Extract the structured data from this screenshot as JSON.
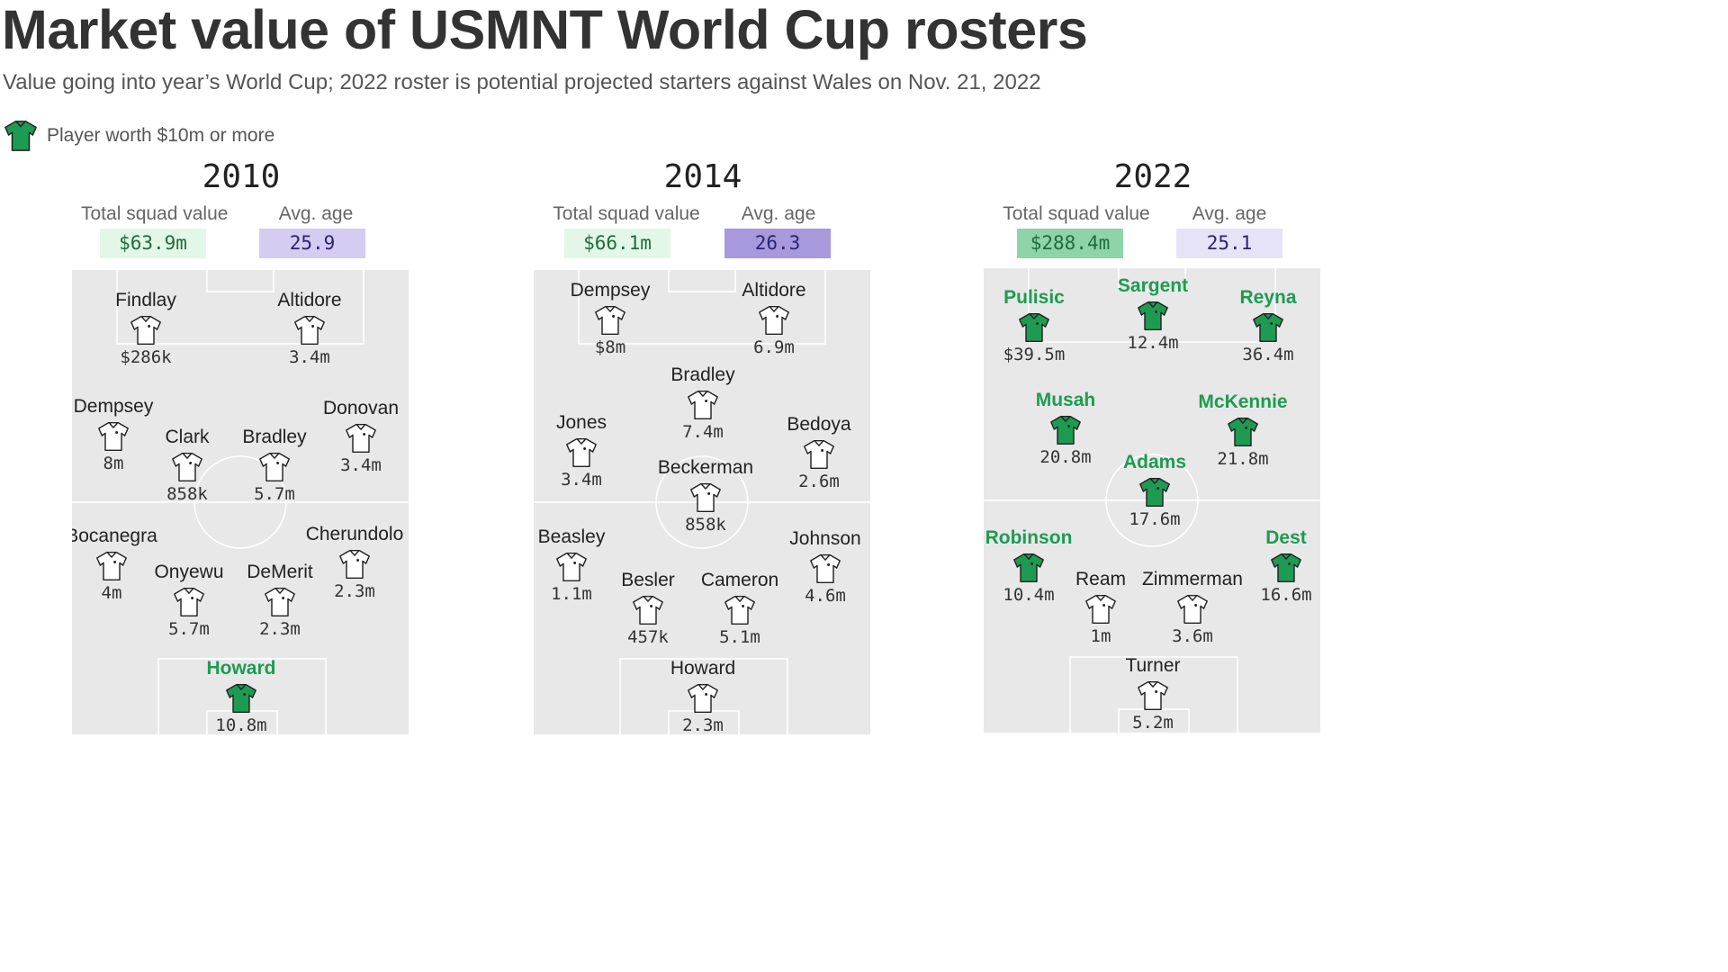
{
  "header": {
    "title": "Market value of USMNT World Cup rosters",
    "subtitle": "Value going into year’s World Cup; 2022 roster is potential projected starters against Wales on Nov. 21, 2022"
  },
  "legend": {
    "label": "Player worth $10m or more",
    "icon": "green-jersey-icon"
  },
  "colors": {
    "star_green": "#1e9b52",
    "shirt_white": "#ffffff",
    "pitch_gray": "#e8e8e8",
    "line_white": "#ffffff",
    "value_box_light": "#e3f7e8",
    "value_box_dark": "#8fd3a8",
    "age_box_light": "#e6e3f7",
    "age_box_mid": "#d4ccf1",
    "age_box_dark": "#a898dc"
  },
  "labels": {
    "total_value": "Total squad value",
    "avg_age": "Avg. age"
  },
  "chart_data": {
    "type": "lineup",
    "threshold_label": "Player worth $10m or more",
    "rosters": [
      {
        "year": "2010",
        "total_value": "$63.9m",
        "avg_age": "25.9",
        "value_box_color": "#e3f7e8",
        "age_box_color": "#d4ccf1",
        "players": [
          {
            "name": "Findlay",
            "value": "$286k",
            "star": false
          },
          {
            "name": "Altidore",
            "value": "3.4m",
            "star": false
          },
          {
            "name": "Dempsey",
            "value": "8m",
            "star": false
          },
          {
            "name": "Clark",
            "value": "858k",
            "star": false
          },
          {
            "name": "Bradley",
            "value": "5.7m",
            "star": false
          },
          {
            "name": "Donovan",
            "value": "3.4m",
            "star": false
          },
          {
            "name": "Bocanegra",
            "value": "4m",
            "star": false
          },
          {
            "name": "Onyewu",
            "value": "5.7m",
            "star": false
          },
          {
            "name": "DeMerit",
            "value": "2.3m",
            "star": false
          },
          {
            "name": "Cherundolo",
            "value": "2.3m",
            "star": false
          },
          {
            "name": "Howard",
            "value": "10.8m",
            "star": true
          }
        ]
      },
      {
        "year": "2014",
        "total_value": "$66.1m",
        "avg_age": "26.3",
        "value_box_color": "#e3f7e8",
        "age_box_color": "#a898dc",
        "players": [
          {
            "name": "Dempsey",
            "value": "$8m",
            "star": false
          },
          {
            "name": "Altidore",
            "value": "6.9m",
            "star": false
          },
          {
            "name": "Bradley",
            "value": "7.4m",
            "star": false
          },
          {
            "name": "Jones",
            "value": "3.4m",
            "star": false
          },
          {
            "name": "Bedoya",
            "value": "2.6m",
            "star": false
          },
          {
            "name": "Beckerman",
            "value": "858k",
            "star": false
          },
          {
            "name": "Beasley",
            "value": "1.1m",
            "star": false
          },
          {
            "name": "Besler",
            "value": "457k",
            "star": false
          },
          {
            "name": "Cameron",
            "value": "5.1m",
            "star": false
          },
          {
            "name": "Johnson",
            "value": "4.6m",
            "star": false
          },
          {
            "name": "Howard",
            "value": "2.3m",
            "star": false
          }
        ]
      },
      {
        "year": "2022",
        "total_value": "$288.4m",
        "avg_age": "25.1",
        "value_box_color": "#8fd3a8",
        "age_box_color": "#e6e3f7",
        "players": [
          {
            "name": "Pulisic",
            "value": "$39.5m",
            "star": true
          },
          {
            "name": "Sargent",
            "value": "12.4m",
            "star": true
          },
          {
            "name": "Reyna",
            "value": "36.4m",
            "star": true
          },
          {
            "name": "Musah",
            "value": "20.8m",
            "star": true
          },
          {
            "name": "McKennie",
            "value": "21.8m",
            "star": true
          },
          {
            "name": "Adams",
            "value": "17.6m",
            "star": true
          },
          {
            "name": "Robinson",
            "value": "10.4m",
            "star": true
          },
          {
            "name": "Ream",
            "value": "1m",
            "star": false
          },
          {
            "name": "Zimmerman",
            "value": "3.6m",
            "star": false
          },
          {
            "name": "Dest",
            "value": "16.6m",
            "star": true
          },
          {
            "name": "Turner",
            "value": "5.2m",
            "star": false
          }
        ]
      }
    ]
  }
}
